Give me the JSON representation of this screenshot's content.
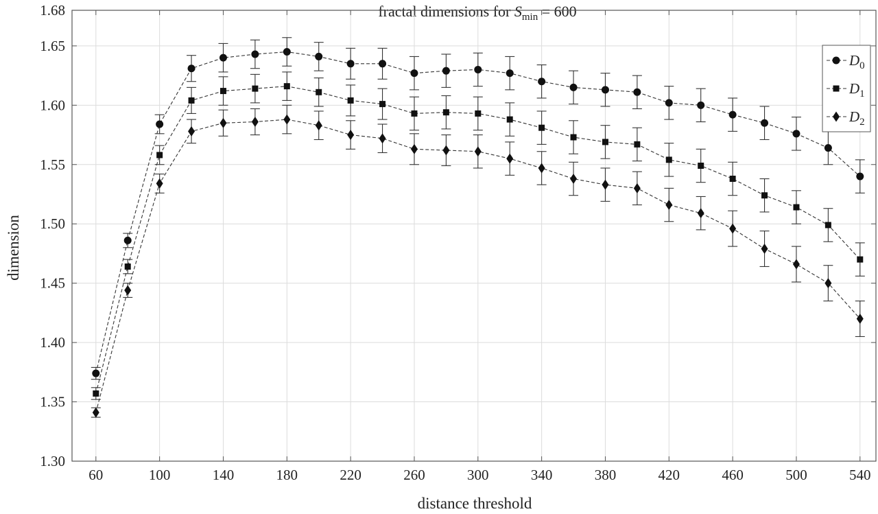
{
  "chart_data": {
    "type": "line",
    "title": {
      "prefix": "fractal dimensions for ",
      "var": "S",
      "sub": "min",
      "suffix": " = 600"
    },
    "xlabel": "distance threshold",
    "ylabel": "dimension",
    "xlim": [
      45,
      550
    ],
    "ylim": [
      1.3,
      1.68
    ],
    "xticks": [
      60,
      100,
      140,
      180,
      220,
      260,
      300,
      340,
      380,
      420,
      460,
      500,
      540
    ],
    "xtick_labels": [
      "60",
      "100",
      "140",
      "180",
      "220",
      "260",
      "300",
      "340",
      "380",
      "420",
      "460",
      "500",
      "540"
    ],
    "yticks": [
      1.3,
      1.35,
      1.4,
      1.45,
      1.5,
      1.55,
      1.6,
      1.65,
      1.68
    ],
    "ytick_labels": [
      "1.30",
      "1.35",
      "1.40",
      "1.45",
      "1.50",
      "1.55",
      "1.60",
      "1.65",
      "1.68"
    ],
    "grid": true,
    "legend_position": "top-right",
    "x": [
      60,
      80,
      100,
      120,
      140,
      160,
      180,
      200,
      220,
      240,
      260,
      280,
      300,
      320,
      340,
      360,
      380,
      400,
      420,
      440,
      460,
      480,
      500,
      520,
      540
    ],
    "series": [
      {
        "name": "D",
        "name_sub": "0",
        "marker": "circle",
        "values": [
          1.374,
          1.486,
          1.584,
          1.631,
          1.64,
          1.643,
          1.645,
          1.641,
          1.635,
          1.635,
          1.627,
          1.629,
          1.63,
          1.627,
          1.62,
          1.615,
          1.613,
          1.611,
          1.602,
          1.6,
          1.592,
          1.585,
          1.576,
          1.564,
          1.54
        ],
        "errors": [
          0.005,
          0.006,
          0.008,
          0.011,
          0.012,
          0.012,
          0.012,
          0.012,
          0.013,
          0.013,
          0.014,
          0.014,
          0.014,
          0.014,
          0.014,
          0.014,
          0.014,
          0.014,
          0.014,
          0.014,
          0.014,
          0.014,
          0.014,
          0.014,
          0.014
        ]
      },
      {
        "name": "D",
        "name_sub": "1",
        "marker": "square",
        "values": [
          1.357,
          1.464,
          1.558,
          1.604,
          1.612,
          1.614,
          1.616,
          1.611,
          1.604,
          1.601,
          1.593,
          1.594,
          1.593,
          1.588,
          1.581,
          1.573,
          1.569,
          1.567,
          1.554,
          1.549,
          1.538,
          1.524,
          1.514,
          1.499,
          1.47
        ],
        "errors": [
          0.005,
          0.006,
          0.008,
          0.011,
          0.012,
          0.012,
          0.012,
          0.012,
          0.013,
          0.013,
          0.014,
          0.014,
          0.014,
          0.014,
          0.014,
          0.014,
          0.014,
          0.014,
          0.014,
          0.014,
          0.014,
          0.014,
          0.014,
          0.014,
          0.014
        ]
      },
      {
        "name": "D",
        "name_sub": "2",
        "marker": "diamond",
        "values": [
          1.341,
          1.444,
          1.534,
          1.578,
          1.585,
          1.586,
          1.588,
          1.583,
          1.575,
          1.572,
          1.563,
          1.562,
          1.561,
          1.555,
          1.547,
          1.538,
          1.533,
          1.53,
          1.516,
          1.509,
          1.496,
          1.479,
          1.466,
          1.45,
          1.42
        ],
        "errors": [
          0.004,
          0.006,
          0.008,
          0.01,
          0.011,
          0.011,
          0.012,
          0.012,
          0.012,
          0.012,
          0.013,
          0.013,
          0.014,
          0.014,
          0.014,
          0.014,
          0.014,
          0.014,
          0.014,
          0.014,
          0.015,
          0.015,
          0.015,
          0.015,
          0.015
        ]
      }
    ]
  }
}
